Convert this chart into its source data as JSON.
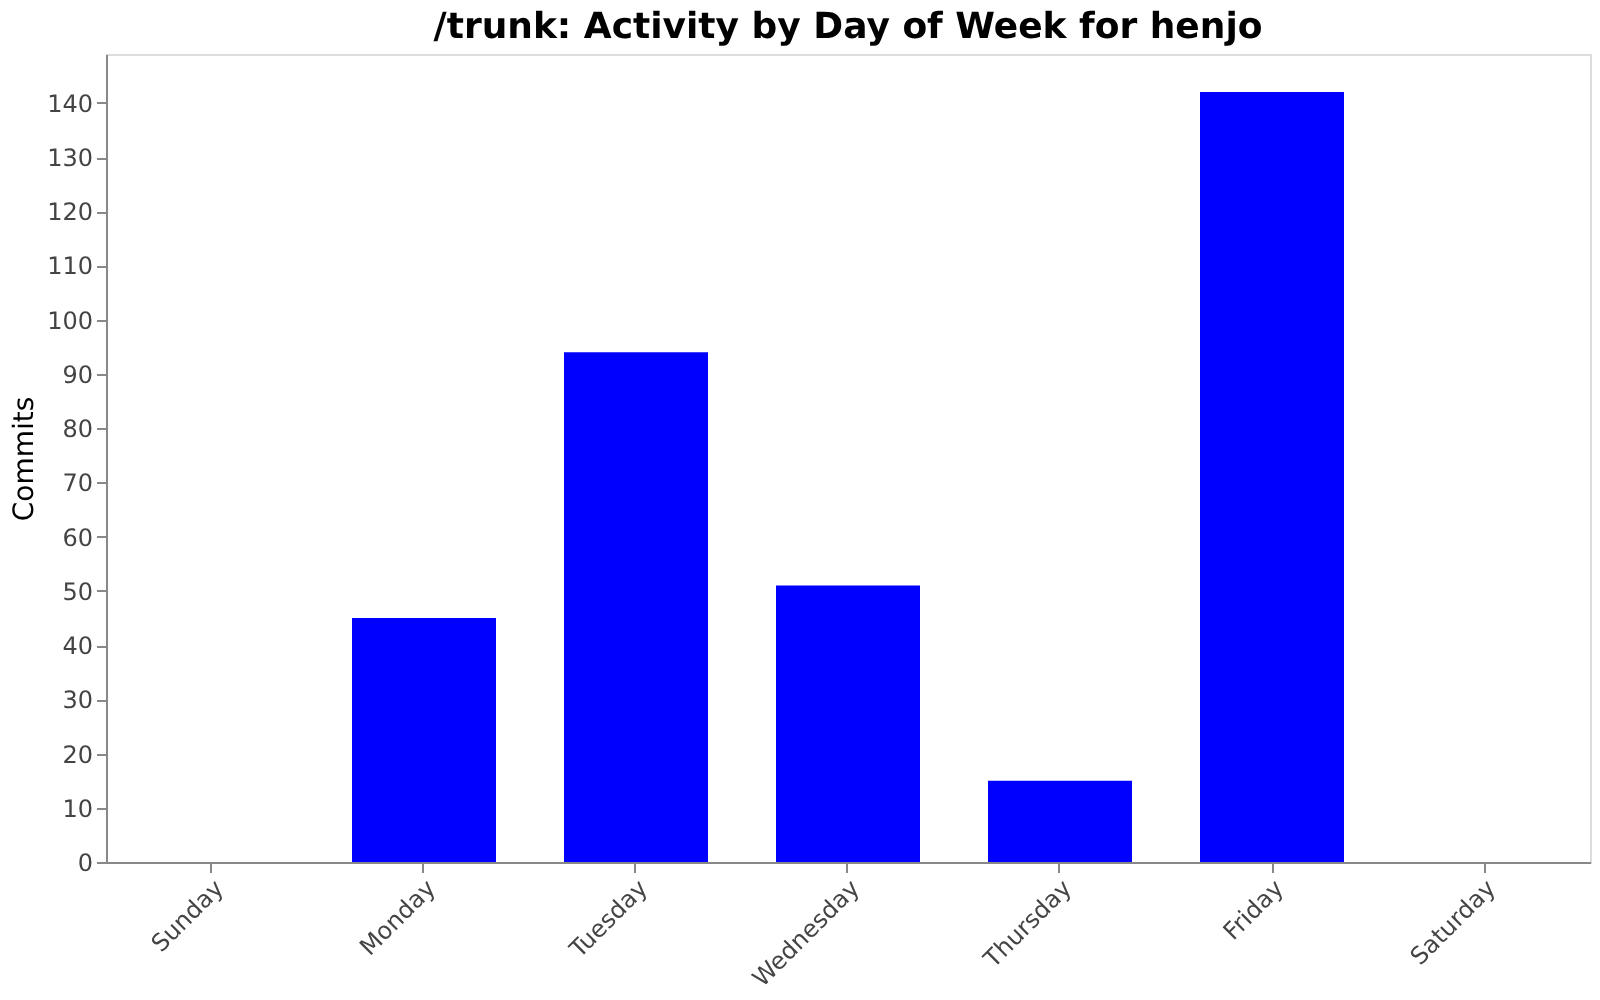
{
  "chart_data": {
    "type": "bar",
    "title": "/trunk: Activity by Day of Week for henjo",
    "ylabel": "Commits",
    "categories": [
      "Sunday",
      "Monday",
      "Tuesday",
      "Wednesday",
      "Thursday",
      "Friday",
      "Saturday"
    ],
    "values": [
      0,
      45,
      94,
      51,
      15,
      142,
      0
    ],
    "color": "#0000ff",
    "ylim": [
      0,
      149
    ],
    "yticks": [
      0,
      10,
      20,
      30,
      40,
      50,
      60,
      70,
      80,
      90,
      100,
      110,
      120,
      130,
      140
    ],
    "grid": false
  }
}
